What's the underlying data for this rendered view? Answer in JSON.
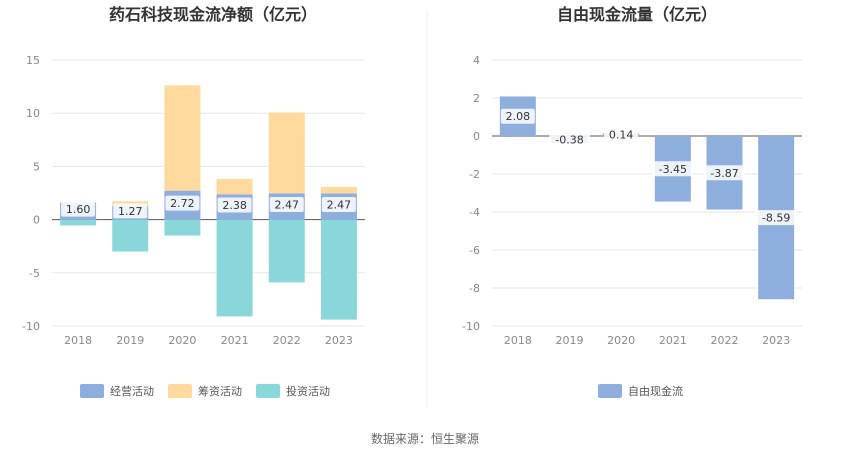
{
  "colors": {
    "operating": "#8eaede",
    "financing": "#ffd99e",
    "investing": "#8ad7db",
    "free_cash_flow": "#8eaede",
    "grid": "#e6e6e6",
    "axis": "#555555",
    "divider": "#eeeeee"
  },
  "source_text": "数据来源：恒生聚源",
  "chart_data": [
    {
      "type": "bar",
      "stacked": true,
      "title": "药石科技现金流净额（亿元）",
      "categories": [
        "2018",
        "2019",
        "2020",
        "2021",
        "2022",
        "2023"
      ],
      "ylim": [
        -10,
        15
      ],
      "yticks": [
        -10,
        -5,
        0,
        5,
        10,
        15
      ],
      "grid": true,
      "legend_position": "bottom",
      "series": [
        {
          "name": "经营活动",
          "color_key": "operating",
          "values": [
            1.6,
            1.27,
            2.72,
            2.38,
            2.47,
            2.47
          ],
          "labels": [
            "1.60",
            "1.27",
            "2.72",
            "2.38",
            "2.47",
            "2.47"
          ]
        },
        {
          "name": "筹资活动",
          "color_key": "financing",
          "values": [
            0.0,
            0.45,
            9.9,
            1.45,
            7.6,
            0.6
          ]
        },
        {
          "name": "投资活动",
          "color_key": "investing",
          "values": [
            -0.55,
            -3.0,
            -1.5,
            -9.1,
            -5.9,
            -9.4
          ]
        }
      ]
    },
    {
      "type": "bar",
      "title": "自由现金流量（亿元）",
      "categories": [
        "2018",
        "2019",
        "2020",
        "2021",
        "2022",
        "2023"
      ],
      "ylim": [
        -10,
        4
      ],
      "yticks": [
        -10,
        -8,
        -6,
        -4,
        -2,
        0,
        2,
        4
      ],
      "grid": true,
      "legend_position": "bottom",
      "series": [
        {
          "name": "自由现金流",
          "color_key": "free_cash_flow",
          "values": [
            2.08,
            -0.38,
            0.14,
            -3.45,
            -3.87,
            -8.59
          ],
          "labels": [
            "2.08",
            "-0.38",
            "0.14",
            "-3.45",
            "-3.87",
            "-8.59"
          ]
        }
      ]
    }
  ]
}
